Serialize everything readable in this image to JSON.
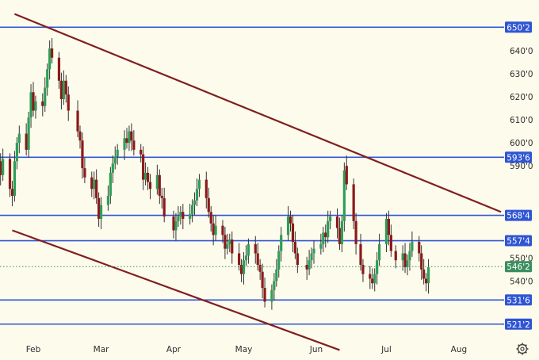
{
  "colors": {
    "background": "#fdfbec",
    "up_candle": "#2e9e57",
    "down_candle": "#8b1a1a",
    "wick": "#333333",
    "level_line": "#2f55d4",
    "trend_line": "#7f1f1f",
    "current_price": "#3a8f5f"
  },
  "settings_icon": "gear-icon",
  "chart_data": {
    "type": "candlestick",
    "x_ticks": [
      "Feb",
      "Mar",
      "Apr",
      "May",
      "Jun",
      "Jul",
      "Aug"
    ],
    "y_ticks": [
      "640'0",
      "630'0",
      "620'0",
      "610'0",
      "600'0",
      "590'0",
      "550'0",
      "540'0"
    ],
    "y_range": [
      516,
      660
    ],
    "levels": [
      {
        "label": "650'2",
        "value": 650.25
      },
      {
        "label": "593'6",
        "value": 593.75
      },
      {
        "label": "568'4",
        "value": 568.5
      },
      {
        "label": "557'4",
        "value": 557.5
      },
      {
        "label": "531'6",
        "value": 531.75
      },
      {
        "label": "521'2",
        "value": 521.25
      }
    ],
    "current_price": {
      "label": "546'2",
      "value": 546.25
    },
    "trend_lines": [
      {
        "start": [
          "2024-01-24",
          656
        ],
        "end": [
          "2024-08-19",
          570
        ]
      },
      {
        "start": [
          "2024-01-23",
          562
        ],
        "end": [
          "2024-06-11",
          510
        ]
      }
    ],
    "dates": [
      "2024-01-17",
      "2024-01-18",
      "2024-01-19",
      "2024-01-22",
      "2024-01-23",
      "2024-01-24",
      "2024-01-25",
      "2024-01-26",
      "2024-01-29",
      "2024-01-30",
      "2024-01-31",
      "2024-02-01",
      "2024-02-02",
      "2024-02-05",
      "2024-02-06",
      "2024-02-07",
      "2024-02-08",
      "2024-02-09",
      "2024-02-12",
      "2024-02-13",
      "2024-02-14",
      "2024-02-15",
      "2024-02-16",
      "2024-02-20",
      "2024-02-21",
      "2024-02-22",
      "2024-02-23",
      "2024-02-26",
      "2024-02-27",
      "2024-02-28",
      "2024-02-29",
      "2024-03-01",
      "2024-03-04",
      "2024-03-05",
      "2024-03-06",
      "2024-03-07",
      "2024-03-08",
      "2024-03-11",
      "2024-03-12",
      "2024-03-13",
      "2024-03-14",
      "2024-03-15",
      "2024-03-18",
      "2024-03-19",
      "2024-03-20",
      "2024-03-21",
      "2024-03-22",
      "2024-03-25",
      "2024-03-26",
      "2024-03-27",
      "2024-03-28",
      "2024-04-01",
      "2024-04-02",
      "2024-04-03",
      "2024-04-04",
      "2024-04-05",
      "2024-04-08",
      "2024-04-09",
      "2024-04-10",
      "2024-04-11",
      "2024-04-12",
      "2024-04-15",
      "2024-04-16",
      "2024-04-17",
      "2024-04-18",
      "2024-04-19",
      "2024-04-22",
      "2024-04-23",
      "2024-04-24",
      "2024-04-25",
      "2024-04-26",
      "2024-04-29",
      "2024-04-30",
      "2024-05-01",
      "2024-05-02",
      "2024-05-03",
      "2024-05-06",
      "2024-05-07",
      "2024-05-08",
      "2024-05-09",
      "2024-05-10",
      "2024-05-13",
      "2024-05-14",
      "2024-05-15",
      "2024-05-16",
      "2024-05-17",
      "2024-05-20",
      "2024-05-21",
      "2024-05-22",
      "2024-05-23",
      "2024-05-24",
      "2024-05-28",
      "2024-05-29",
      "2024-05-30",
      "2024-05-31",
      "2024-06-03",
      "2024-06-04",
      "2024-06-05",
      "2024-06-06",
      "2024-06-07",
      "2024-06-10",
      "2024-06-11",
      "2024-06-12",
      "2024-06-13",
      "2024-06-14",
      "2024-06-17",
      "2024-06-18",
      "2024-06-20",
      "2024-06-21",
      "2024-06-24",
      "2024-06-25",
      "2024-06-26",
      "2024-06-27",
      "2024-06-28",
      "2024-07-01",
      "2024-07-02",
      "2024-07-03",
      "2024-07-05",
      "2024-07-08",
      "2024-07-09",
      "2024-07-10",
      "2024-07-11",
      "2024-07-12",
      "2024-07-15",
      "2024-07-16",
      "2024-07-17",
      "2024-07-18",
      "2024-07-19"
    ],
    "closes": [
      592,
      586,
      593,
      580,
      577,
      592,
      600,
      604,
      597,
      611,
      622,
      614,
      618,
      616,
      624,
      632,
      641,
      637,
      627,
      619,
      627,
      621,
      614,
      605,
      601,
      589,
      585,
      580,
      584,
      576,
      567,
      573,
      577,
      587,
      591,
      594,
      597,
      602,
      600,
      605,
      601,
      597,
      595,
      584,
      587,
      583,
      580,
      586,
      577,
      576,
      568,
      562,
      566,
      568,
      570,
      567,
      569,
      573,
      575,
      580,
      584,
      576,
      570,
      565,
      560,
      564,
      560,
      554,
      556,
      558,
      552,
      547,
      543,
      549,
      551,
      556,
      552,
      547,
      544,
      537,
      531,
      536,
      540,
      545,
      553,
      560,
      568,
      565,
      557,
      552,
      547,
      545,
      549,
      552,
      554,
      556,
      561,
      559,
      566,
      568,
      563,
      556,
      566,
      588,
      582,
      566,
      556,
      547,
      543,
      541,
      539,
      543,
      549,
      556,
      567,
      560,
      553,
      549,
      552,
      546,
      549,
      553,
      557,
      552,
      545,
      541,
      539,
      546
    ],
    "opens": [
      594,
      592,
      586,
      593,
      580,
      577,
      592,
      600,
      604,
      597,
      611,
      622,
      614,
      618,
      616,
      624,
      632,
      641,
      637,
      627,
      619,
      627,
      621,
      614,
      605,
      601,
      589,
      585,
      580,
      584,
      576,
      567,
      573,
      577,
      587,
      591,
      594,
      597,
      602,
      600,
      605,
      601,
      597,
      595,
      584,
      587,
      583,
      580,
      586,
      577,
      576,
      568,
      562,
      566,
      568,
      570,
      567,
      569,
      573,
      575,
      580,
      584,
      576,
      570,
      565,
      560,
      564,
      560,
      554,
      556,
      558,
      552,
      547,
      543,
      549,
      551,
      556,
      552,
      547,
      544,
      537,
      531,
      536,
      540,
      545,
      553,
      560,
      568,
      565,
      557,
      552,
      547,
      545,
      549,
      552,
      554,
      556,
      561,
      559,
      566,
      568,
      563,
      556,
      566,
      590,
      582,
      566,
      556,
      547,
      543,
      541,
      539,
      543,
      549,
      556,
      567,
      560,
      553,
      549,
      552,
      546,
      549,
      553,
      557,
      552,
      545,
      541,
      539
    ]
  }
}
